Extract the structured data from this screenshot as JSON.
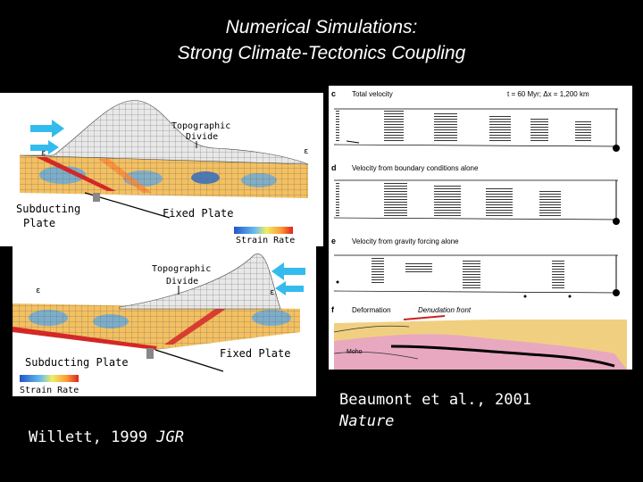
{
  "title": {
    "line1": "Numerical Simulations:",
    "line2": "Strong Climate-Tectonics Coupling"
  },
  "left_figure_top": {
    "label_topo": "Topographic",
    "label_divide": "Divide",
    "label_subducting": "Subducting",
    "label_plate": "Plate",
    "label_fixed": "Fixed Plate",
    "label_strain": "Strain Rate"
  },
  "left_figure_bottom": {
    "label_topo": "Topographic",
    "label_divide": "Divide",
    "label_subducting": "Subducting Plate",
    "label_fixed": "Fixed Plate",
    "label_strain": "Strain Rate"
  },
  "right_figure": {
    "c_letter": "c",
    "c_label": "Total velocity",
    "c_params": "t = 60 Myr;  Δx = 1,200 km",
    "d_letter": "d",
    "d_label": "Velocity from boundary conditions alone",
    "e_letter": "e",
    "e_label": "Velocity from gravity forcing alone",
    "f_letter": "f",
    "f_label": "Deformation",
    "f_front": "Denudation front",
    "moho": "Moho"
  },
  "captions": {
    "left_author": "Willett, 1999 ",
    "left_journal": "JGR",
    "right_line1": "Beaumont et al., 2001",
    "right_line2": "Nature"
  },
  "colors": {
    "background": "#000000",
    "arrow_cyan": "#33bbee",
    "strain_high": "#dd2222",
    "strain_low": "#2255cc"
  }
}
